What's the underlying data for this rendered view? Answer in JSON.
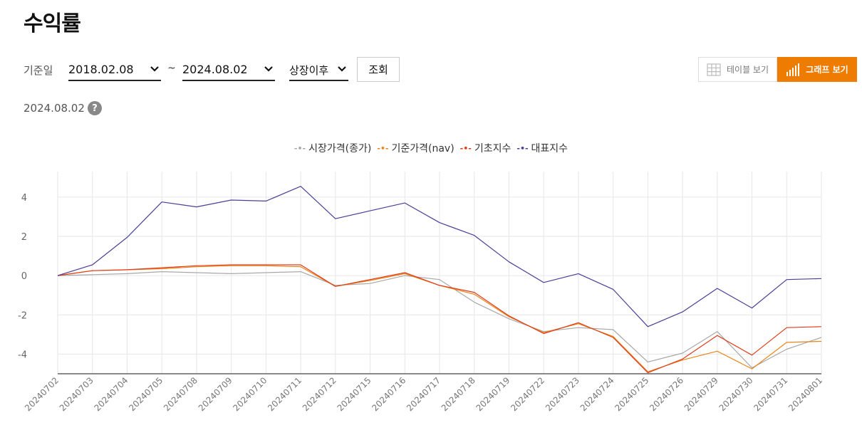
{
  "header": {
    "title": "수익률"
  },
  "filter": {
    "label": "기준일",
    "start_date": "2018.02.08",
    "separator": "~",
    "end_date": "2024.08.02",
    "period": "상장이후",
    "search_label": "조회"
  },
  "view_toggle": {
    "table_label": "테이블 보기",
    "graph_label": "그래프 보기",
    "active": "graph"
  },
  "reference_date": "2024.08.02",
  "help_label": "?",
  "chart_data": {
    "type": "line",
    "x": [
      "20240702",
      "20240703",
      "20240704",
      "20240705",
      "20240708",
      "20240709",
      "20240710",
      "20240711",
      "20240712",
      "20240715",
      "20240716",
      "20240717",
      "20240718",
      "20240719",
      "20240722",
      "20240723",
      "20240724",
      "20240725",
      "20240726",
      "20240729",
      "20240730",
      "20240731",
      "20240801"
    ],
    "ylim": [
      -5,
      5.3
    ],
    "yticks": [
      4,
      2,
      0,
      -2,
      -4
    ],
    "grid": true,
    "legend_position": "top-center",
    "series": [
      {
        "name": "시장가격(종가)",
        "color": "#a8a8a8",
        "values": [
          0,
          0.05,
          0.1,
          0.2,
          0.15,
          0.1,
          0.15,
          0.2,
          -0.5,
          -0.4,
          0,
          -0.2,
          -1.35,
          -2.2,
          -2.85,
          -2.65,
          -2.75,
          -4.4,
          -3.95,
          -2.85,
          -4.7,
          -3.75,
          -3.15
        ]
      },
      {
        "name": "기준가격(nav)",
        "color": "#e8861a",
        "values": [
          0,
          0.25,
          0.3,
          0.35,
          0.45,
          0.5,
          0.5,
          0.45,
          -0.55,
          -0.25,
          0.1,
          -0.5,
          -0.95,
          -2.1,
          -2.9,
          -2.45,
          -3.1,
          -4.9,
          -4.3,
          -3.85,
          -4.75,
          -3.4,
          -3.35
        ]
      },
      {
        "name": "기초지수",
        "color": "#e03c1a",
        "values": [
          0,
          0.25,
          0.3,
          0.4,
          0.5,
          0.55,
          0.55,
          0.55,
          -0.55,
          -0.2,
          0.15,
          -0.5,
          -0.85,
          -2.05,
          -2.95,
          -2.4,
          -3.15,
          -4.95,
          -4.25,
          -3.05,
          -4.05,
          -2.65,
          -2.6
        ]
      },
      {
        "name": "대표지수",
        "color": "#4a4098",
        "values": [
          0,
          0.55,
          1.95,
          3.75,
          3.5,
          3.85,
          3.8,
          4.55,
          2.9,
          3.3,
          3.7,
          2.7,
          2.05,
          0.7,
          -0.35,
          0.1,
          -0.7,
          -2.6,
          -1.85,
          -0.65,
          -1.65,
          -0.2,
          -0.15
        ]
      }
    ]
  }
}
